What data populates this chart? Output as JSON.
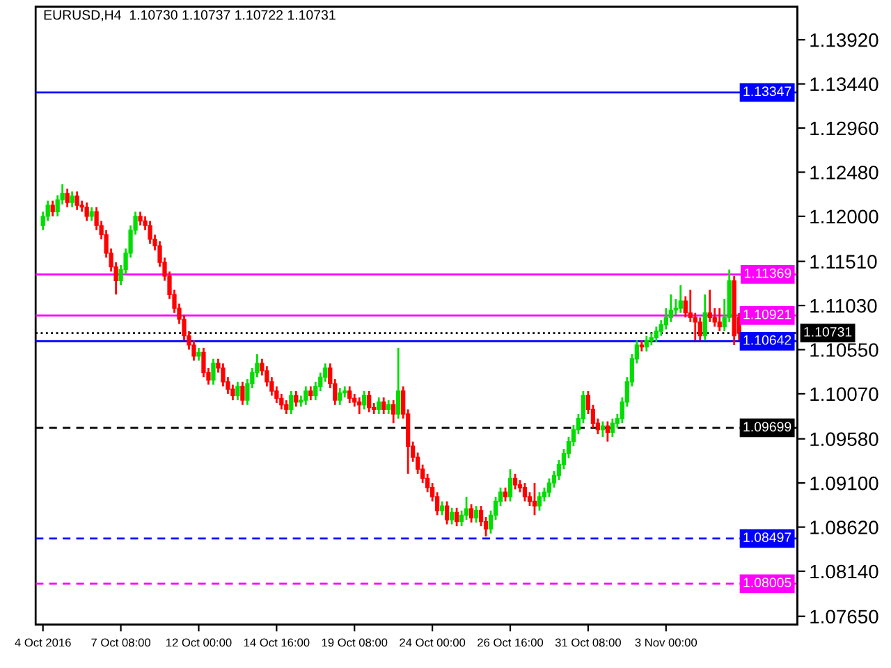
{
  "chart_data": {
    "type": "candlestick",
    "title": "EURUSD,H4  1.10730 1.10737 1.10722 1.10731",
    "categories": [
      "4 Oct 2016",
      null,
      null,
      null,
      null,
      null,
      null,
      null,
      null,
      null,
      null,
      null,
      null,
      null,
      null,
      null,
      "7 Oct 08:00",
      null,
      null,
      null,
      null,
      null,
      null,
      null,
      null,
      null,
      null,
      null,
      null,
      null,
      null,
      null,
      "12 Oct 00:00",
      null,
      null,
      null,
      null,
      null,
      null,
      null,
      null,
      null,
      null,
      null,
      null,
      null,
      null,
      null,
      "14 Oct 16:00",
      null,
      null,
      null,
      null,
      null,
      null,
      null,
      null,
      null,
      null,
      null,
      null,
      null,
      null,
      null,
      "19 Oct 08:00",
      null,
      null,
      null,
      null,
      null,
      null,
      null,
      null,
      null,
      null,
      null,
      null,
      null,
      null,
      null,
      "24 Oct 00:00",
      null,
      null,
      null,
      null,
      null,
      null,
      null,
      null,
      null,
      null,
      null,
      null,
      null,
      null,
      null,
      "26 Oct 16:00",
      null,
      null,
      null,
      null,
      null,
      null,
      null,
      null,
      null,
      null,
      null,
      null,
      null,
      null,
      null,
      "31 Oct 08:00",
      null,
      null,
      null,
      null,
      null,
      null,
      null,
      null,
      null,
      null,
      null,
      null,
      null,
      null,
      null,
      "3 Nov 00:00",
      null,
      null,
      null,
      null,
      null,
      null,
      null,
      null,
      null,
      null,
      null,
      null,
      null,
      null,
      null
    ],
    "ohlc": [
      [
        1.119,
        1.1205,
        1.1185,
        1.12
      ],
      [
        1.12,
        1.1217,
        1.1195,
        1.1212
      ],
      [
        1.1212,
        1.1217,
        1.12,
        1.1205
      ],
      [
        1.1205,
        1.1223,
        1.12,
        1.1218
      ],
      [
        1.1218,
        1.1235,
        1.1213,
        1.1225
      ],
      [
        1.1225,
        1.123,
        1.121,
        1.1215
      ],
      [
        1.1215,
        1.1227,
        1.121,
        1.1222
      ],
      [
        1.1222,
        1.1227,
        1.1207,
        1.1212
      ],
      [
        1.1212,
        1.1217,
        1.1205,
        1.121
      ],
      [
        1.121,
        1.1215,
        1.1195,
        1.12
      ],
      [
        1.12,
        1.121,
        1.1195,
        1.1205
      ],
      [
        1.1205,
        1.121,
        1.1185,
        1.119
      ],
      [
        1.119,
        1.1195,
        1.1175,
        1.118
      ],
      [
        1.118,
        1.1185,
        1.1155,
        1.116
      ],
      [
        1.116,
        1.1165,
        1.114,
        1.1145
      ],
      [
        1.1145,
        1.115,
        1.1115,
        1.113
      ],
      [
        1.113,
        1.1147,
        1.1125,
        1.1142
      ],
      [
        1.1142,
        1.1165,
        1.1137,
        1.116
      ],
      [
        1.116,
        1.119,
        1.1155,
        1.1185
      ],
      [
        1.1185,
        1.1205,
        1.118,
        1.12
      ],
      [
        1.12,
        1.1205,
        1.119,
        1.1195
      ],
      [
        1.1195,
        1.12,
        1.1185,
        1.119
      ],
      [
        1.119,
        1.1195,
        1.117,
        1.1175
      ],
      [
        1.1175,
        1.118,
        1.1163,
        1.1168
      ],
      [
        1.1168,
        1.1173,
        1.1145,
        1.115
      ],
      [
        1.115,
        1.1155,
        1.113,
        1.1135
      ],
      [
        1.1135,
        1.114,
        1.111,
        1.1115
      ],
      [
        1.1115,
        1.112,
        1.1095,
        1.11
      ],
      [
        1.11,
        1.1105,
        1.1083,
        1.1088
      ],
      [
        1.1088,
        1.1093,
        1.1065,
        1.107
      ],
      [
        1.107,
        1.1075,
        1.1055,
        1.106
      ],
      [
        1.106,
        1.1065,
        1.1043,
        1.1048
      ],
      [
        1.1048,
        1.1057,
        1.1043,
        1.1052
      ],
      [
        1.1052,
        1.1057,
        1.1025,
        1.103
      ],
      [
        1.103,
        1.1035,
        1.1017,
        1.1022
      ],
      [
        1.1022,
        1.1045,
        1.1017,
        1.104
      ],
      [
        1.104,
        1.1045,
        1.103,
        1.1035
      ],
      [
        1.1035,
        1.104,
        1.1015,
        1.102
      ],
      [
        1.102,
        1.1025,
        1.1007,
        1.1012
      ],
      [
        1.1012,
        1.1017,
        1.1,
        1.1005
      ],
      [
        1.1005,
        1.102,
        1.1,
        1.1015
      ],
      [
        1.1015,
        1.102,
        1.0995,
        1.1
      ],
      [
        1.1,
        1.1023,
        1.0995,
        1.1018
      ],
      [
        1.1018,
        1.1035,
        1.1013,
        1.103
      ],
      [
        1.103,
        1.105,
        1.1025,
        1.104
      ],
      [
        1.104,
        1.1045,
        1.1027,
        1.1032
      ],
      [
        1.1032,
        1.1037,
        1.1015,
        1.102
      ],
      [
        1.102,
        1.1025,
        1.1005,
        1.101
      ],
      [
        1.101,
        1.1015,
        1.0997,
        1.1002
      ],
      [
        1.1002,
        1.1007,
        1.099,
        1.0995
      ],
      [
        1.0995,
        1.1,
        1.0985,
        1.099
      ],
      [
        1.099,
        1.101,
        1.0985,
        1.1005
      ],
      [
        1.1005,
        1.101,
        1.0993,
        1.0998
      ],
      [
        1.0998,
        1.1005,
        1.0993,
        1.1
      ],
      [
        1.1,
        1.1015,
        1.0995,
        1.101
      ],
      [
        1.101,
        1.1015,
        1.1,
        1.1005
      ],
      [
        1.1005,
        1.102,
        1.1,
        1.1015
      ],
      [
        1.1015,
        1.103,
        1.101,
        1.1025
      ],
      [
        1.1025,
        1.104,
        1.102,
        1.1035
      ],
      [
        1.1035,
        1.104,
        1.1013,
        1.1018
      ],
      [
        1.1018,
        1.1023,
        1.0995,
        1.1
      ],
      [
        1.1,
        1.1013,
        1.0995,
        1.1008
      ],
      [
        1.1008,
        1.1015,
        1.1003,
        1.101
      ],
      [
        1.101,
        1.1015,
        1.0997,
        1.1002
      ],
      [
        1.1002,
        1.1007,
        1.0993,
        1.0998
      ],
      [
        1.0998,
        1.1003,
        1.0985,
        1.0995
      ],
      [
        1.0995,
        1.101,
        1.099,
        1.1005
      ],
      [
        1.1005,
        1.101,
        1.0987,
        1.0992
      ],
      [
        1.0992,
        1.0997,
        1.0985,
        1.099
      ],
      [
        1.099,
        1.1003,
        1.0985,
        1.0998
      ],
      [
        1.0998,
        1.1003,
        1.0985,
        1.099
      ],
      [
        1.099,
        1.1,
        1.0985,
        1.0995
      ],
      [
        1.0995,
        1.1,
        1.0975,
        1.0985
      ],
      [
        1.0985,
        1.1057,
        1.098,
        1.101
      ],
      [
        1.101,
        1.1015,
        1.098,
        1.0985
      ],
      [
        1.0985,
        1.099,
        1.092,
        1.095
      ],
      [
        1.095,
        1.0955,
        1.0933,
        1.0938
      ],
      [
        1.0938,
        1.0943,
        1.092,
        1.0925
      ],
      [
        1.0925,
        1.093,
        1.091,
        1.0915
      ],
      [
        1.0915,
        1.092,
        1.09,
        1.0905
      ],
      [
        1.0905,
        1.091,
        1.089,
        1.0895
      ],
      [
        1.0895,
        1.09,
        1.0875,
        1.088
      ],
      [
        1.088,
        1.089,
        1.0875,
        1.0885
      ],
      [
        1.0885,
        1.089,
        1.0865,
        1.087
      ],
      [
        1.087,
        1.0883,
        1.0865,
        1.0878
      ],
      [
        1.0878,
        1.0883,
        1.0863,
        1.0868
      ],
      [
        1.0868,
        1.088,
        1.0863,
        1.0875
      ],
      [
        1.0875,
        1.0895,
        1.087,
        1.0882
      ],
      [
        1.0882,
        1.0887,
        1.0867,
        1.0872
      ],
      [
        1.0872,
        1.0885,
        1.0867,
        1.088
      ],
      [
        1.088,
        1.0885,
        1.0863,
        1.0868
      ],
      [
        1.0868,
        1.0873,
        1.0852,
        1.086
      ],
      [
        1.086,
        1.088,
        1.0855,
        1.0875
      ],
      [
        1.0875,
        1.0895,
        1.087,
        1.089
      ],
      [
        1.089,
        1.0905,
        1.0885,
        1.09
      ],
      [
        1.09,
        1.0905,
        1.089,
        1.0895
      ],
      [
        1.0895,
        1.0925,
        1.089,
        1.0915
      ],
      [
        1.0915,
        1.092,
        1.0903,
        1.0908
      ],
      [
        1.0908,
        1.0913,
        1.09,
        1.0905
      ],
      [
        1.0905,
        1.091,
        1.089,
        1.0895
      ],
      [
        1.0895,
        1.09,
        1.0885,
        1.089
      ],
      [
        1.089,
        1.091,
        1.0875,
        1.0885
      ],
      [
        1.0885,
        1.09,
        1.088,
        1.0895
      ],
      [
        1.0895,
        1.0905,
        1.089,
        1.09
      ],
      [
        1.09,
        1.0915,
        1.0895,
        1.091
      ],
      [
        1.091,
        1.0923,
        1.0905,
        1.0918
      ],
      [
        1.0918,
        1.0935,
        1.0913,
        1.093
      ],
      [
        1.093,
        1.0947,
        1.0925,
        1.0942
      ],
      [
        1.0942,
        1.096,
        1.0937,
        1.0955
      ],
      [
        1.0955,
        1.0973,
        1.095,
        1.0968
      ],
      [
        1.0968,
        1.0985,
        1.0963,
        1.098
      ],
      [
        1.098,
        1.101,
        1.0975,
        1.1005
      ],
      [
        1.1005,
        1.101,
        1.0985,
        1.099
      ],
      [
        1.099,
        1.0995,
        1.097,
        1.0975
      ],
      [
        1.0975,
        1.098,
        1.0963,
        1.0968
      ],
      [
        1.0968,
        1.0977,
        1.096,
        1.0972
      ],
      [
        1.0972,
        1.0977,
        1.0955,
        1.0965
      ],
      [
        1.0965,
        1.098,
        1.096,
        1.0975
      ],
      [
        1.0975,
        1.0985,
        1.097,
        1.098
      ],
      [
        1.098,
        1.1003,
        1.0975,
        1.0998
      ],
      [
        1.0998,
        1.1025,
        1.0993,
        1.102
      ],
      [
        1.102,
        1.105,
        1.1015,
        1.1045
      ],
      [
        1.1045,
        1.1065,
        1.104,
        1.106
      ],
      [
        1.106,
        1.1065,
        1.1053,
        1.1058
      ],
      [
        1.1058,
        1.107,
        1.1053,
        1.1065
      ],
      [
        1.1065,
        1.1073,
        1.106,
        1.1068
      ],
      [
        1.1068,
        1.108,
        1.1063,
        1.1075
      ],
      [
        1.1075,
        1.1087,
        1.107,
        1.1082
      ],
      [
        1.1082,
        1.11,
        1.1077,
        1.109
      ],
      [
        1.109,
        1.1115,
        1.1085,
        1.1098
      ],
      [
        1.1098,
        1.111,
        1.1093,
        1.11
      ],
      [
        1.11,
        1.1125,
        1.1095,
        1.1108
      ],
      [
        1.1108,
        1.1113,
        1.109,
        1.1095
      ],
      [
        1.1095,
        1.112,
        1.1085,
        1.109
      ],
      [
        1.109,
        1.1095,
        1.1065,
        1.1085
      ],
      [
        1.1085,
        1.109,
        1.1065,
        1.107
      ],
      [
        1.107,
        1.1115,
        1.1065,
        1.1095
      ],
      [
        1.1095,
        1.112,
        1.1085,
        1.109
      ],
      [
        1.109,
        1.11,
        1.108,
        1.1085
      ],
      [
        1.1085,
        1.11,
        1.1075,
        1.108
      ],
      [
        1.108,
        1.111,
        1.1075,
        1.109
      ],
      [
        1.109,
        1.1142,
        1.1085,
        1.113
      ],
      [
        1.113,
        1.1135,
        1.106,
        1.107
      ],
      [
        1.109,
        1.1095,
        1.1065,
        1.1073
      ]
    ],
    "ylim": [
      1.0756,
      1.1428
    ],
    "yticks": [
      {
        "value": 1.1392,
        "label": "1.13920"
      },
      {
        "value": 1.1344,
        "label": "1.13440"
      },
      {
        "value": 1.1296,
        "label": "1.12960"
      },
      {
        "value": 1.1248,
        "label": "1.12480"
      },
      {
        "value": 1.12,
        "label": "1.12000"
      },
      {
        "value": 1.1151,
        "label": "1.11510"
      },
      {
        "value": 1.1103,
        "label": "1.11030"
      },
      {
        "value": 1.1055,
        "label": "1.10550"
      },
      {
        "value": 1.1007,
        "label": "1.10070"
      },
      {
        "value": 1.0958,
        "label": "1.09580"
      },
      {
        "value": 1.091,
        "label": "1.09100"
      },
      {
        "value": 1.0862,
        "label": "1.08620"
      },
      {
        "value": 1.0814,
        "label": "1.08140"
      },
      {
        "value": 1.0765,
        "label": "1.07650"
      }
    ],
    "ref_lines": [
      {
        "axis": "y",
        "value": 1.13347,
        "label": "1.13347",
        "color": "#0000ff",
        "line_style": "solid"
      },
      {
        "axis": "y",
        "value": 1.11369,
        "label": "1.11369",
        "color": "#ff00ff",
        "line_style": "solid"
      },
      {
        "axis": "y",
        "value": 1.10921,
        "label": "1.10921",
        "color": "#ff00ff",
        "line_style": "solid"
      },
      {
        "axis": "y",
        "value": 1.10642,
        "label": "1.10642",
        "color": "#0000ff",
        "line_style": "solid"
      },
      {
        "axis": "y",
        "value": 1.10731,
        "label": "1.10731",
        "color": "#000000",
        "line_style": "dotted"
      },
      {
        "axis": "y",
        "value": 1.09699,
        "label": "1.09699",
        "color": "#000000",
        "line_style": "dashed"
      },
      {
        "axis": "y",
        "value": 1.08497,
        "label": "1.08497",
        "color": "#0000ff",
        "line_style": "dashed"
      },
      {
        "axis": "y",
        "value": 1.08005,
        "label": "1.08005",
        "color": "#ff00ff",
        "line_style": "dashed"
      }
    ],
    "grid": false,
    "legend": false
  }
}
